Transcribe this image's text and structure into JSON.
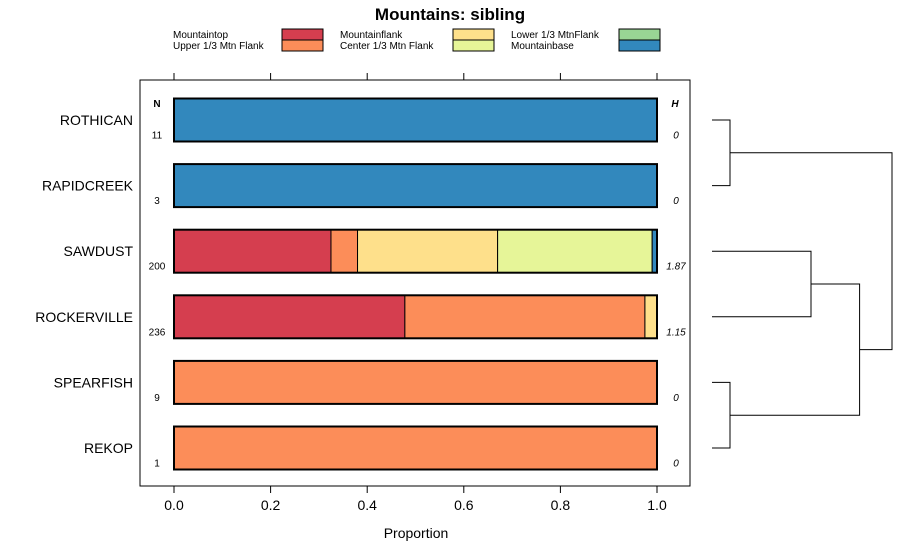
{
  "chart_data": {
    "type": "bar",
    "orientation": "horizontal",
    "stacked": true,
    "title": "Mountains: sibling",
    "xlabel": "Proportion",
    "ylabel": "",
    "xlim": [
      0,
      1
    ],
    "xticks": [
      "0.0",
      "0.2",
      "0.4",
      "0.6",
      "0.8",
      "1.0"
    ],
    "n_header": "N",
    "h_header": "H",
    "legend": [
      {
        "name": "Mountaintop",
        "color": "#d53e4f"
      },
      {
        "name": "Upper 1/3 Mtn Flank",
        "color": "#fc8d59"
      },
      {
        "name": "Mountainflank",
        "color": "#fee08b"
      },
      {
        "name": "Center 1/3 Mtn Flank",
        "color": "#e6f598"
      },
      {
        "name": "Lower 1/3 MtnFlank",
        "color": "#99d594"
      },
      {
        "name": "Mountainbase",
        "color": "#3288bd"
      }
    ],
    "categories": [
      "ROTHICAN",
      "RAPIDCREEK",
      "SAWDUST",
      "ROCKERVILLE",
      "SPEARFISH",
      "REKOP"
    ],
    "n": [
      "11",
      "3",
      "200",
      "236",
      "9",
      "1"
    ],
    "h": [
      "0",
      "0",
      "1.87",
      "1.15",
      "0",
      "0"
    ],
    "series": [
      {
        "name": "Mountaintop",
        "values": [
          0,
          0,
          0.325,
          0.478,
          0,
          0
        ]
      },
      {
        "name": "Upper 1/3 Mtn Flank",
        "values": [
          0,
          0,
          0.055,
          0.497,
          1,
          1
        ]
      },
      {
        "name": "Mountainflank",
        "values": [
          0,
          0,
          0.29,
          0.025,
          0,
          0
        ]
      },
      {
        "name": "Center 1/3 Mtn Flank",
        "values": [
          0,
          0,
          0.32,
          0,
          0,
          0
        ]
      },
      {
        "name": "Lower 1/3 MtnFlank",
        "values": [
          0,
          0,
          0,
          0,
          0,
          0
        ]
      },
      {
        "name": "Mountainbase",
        "values": [
          1,
          1,
          0.01,
          0,
          0,
          0
        ]
      }
    ],
    "dendrogram": {
      "leaf_order": [
        "ROTHICAN",
        "RAPIDCREEK",
        "SAWDUST",
        "ROCKERVILLE",
        "SPEARFISH",
        "REKOP"
      ],
      "merges": [
        {
          "left": "leaf:0",
          "right": "leaf:1",
          "height": 0.1
        },
        {
          "left": "leaf:4",
          "right": "leaf:5",
          "height": 0.1
        },
        {
          "left": "leaf:2",
          "right": "leaf:3",
          "height": 0.55
        },
        {
          "left": "node:2",
          "right": "node:1",
          "height": 0.82
        },
        {
          "left": "node:0",
          "right": "node:3",
          "height": 1.0
        }
      ]
    }
  }
}
